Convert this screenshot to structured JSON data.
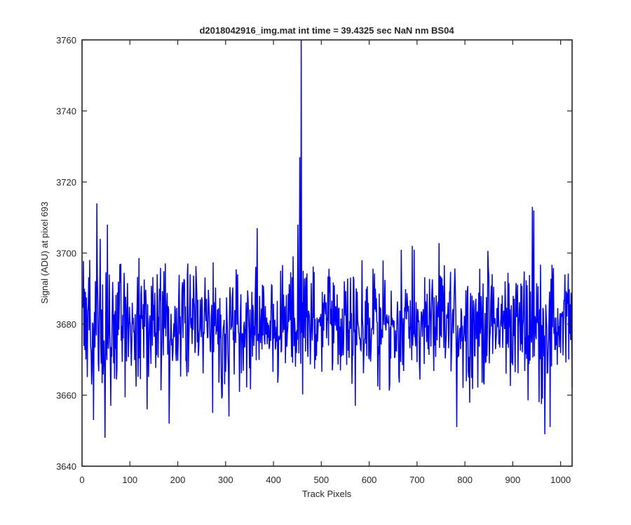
{
  "chart_data": {
    "type": "line",
    "title": "d2018042916_img.mat int time = 39.4325 sec  NaN nm BS04",
    "xlabel": "Track Pixels",
    "ylabel": "Signal (ADU) at pixel 693",
    "xlim": [
      0,
      1024
    ],
    "ylim": [
      3640,
      3760
    ],
    "xticks": [
      0,
      100,
      200,
      300,
      400,
      500,
      600,
      700,
      800,
      900,
      1000
    ],
    "yticks": [
      3640,
      3660,
      3680,
      3700,
      3720,
      3740,
      3760
    ],
    "grid": false,
    "legend": "none",
    "line_color": "#0000ff",
    "series": [
      {
        "x_start": 1,
        "x_step": 1,
        "baseline": 3680,
        "typical_range": [
          3665,
          3697
        ],
        "notable_points": [
          {
            "x": 20,
            "y": 3663
          },
          {
            "x": 24,
            "y": 3653
          },
          {
            "x": 31,
            "y": 3714
          },
          {
            "x": 38,
            "y": 3704
          },
          {
            "x": 48,
            "y": 3648
          },
          {
            "x": 53,
            "y": 3708
          },
          {
            "x": 60,
            "y": 3657
          },
          {
            "x": 136,
            "y": 3656
          },
          {
            "x": 182,
            "y": 3652
          },
          {
            "x": 273,
            "y": 3655
          },
          {
            "x": 307,
            "y": 3654
          },
          {
            "x": 325,
            "y": 3694
          },
          {
            "x": 366,
            "y": 3707
          },
          {
            "x": 446,
            "y": 3668
          },
          {
            "x": 451,
            "y": 3708
          },
          {
            "x": 455,
            "y": 3727
          },
          {
            "x": 458,
            "y": 3760
          },
          {
            "x": 462,
            "y": 3695
          },
          {
            "x": 571,
            "y": 3657
          },
          {
            "x": 783,
            "y": 3651
          },
          {
            "x": 941,
            "y": 3713
          },
          {
            "x": 944,
            "y": 3712
          },
          {
            "x": 955,
            "y": 3658
          },
          {
            "x": 967,
            "y": 3649
          },
          {
            "x": 978,
            "y": 3651
          }
        ]
      }
    ]
  }
}
